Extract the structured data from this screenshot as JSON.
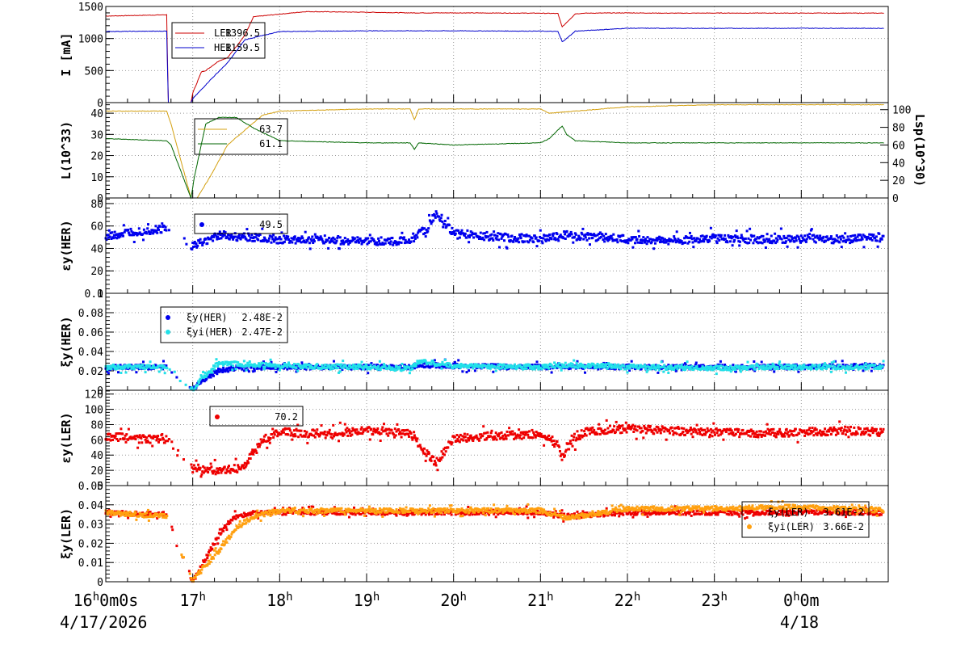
{
  "time_axis": {
    "start_label": "16h0m0s",
    "start_date": "4/17/2026",
    "ticks": [
      {
        "t": 0,
        "main": "16",
        "sup": "h",
        "extra": "0m0s"
      },
      {
        "t": 1,
        "main": "17",
        "sup": "h"
      },
      {
        "t": 2,
        "main": "18",
        "sup": "h"
      },
      {
        "t": 3,
        "main": "19",
        "sup": "h"
      },
      {
        "t": 4,
        "main": "20",
        "sup": "h"
      },
      {
        "t": 5,
        "main": "21",
        "sup": "h"
      },
      {
        "t": 6,
        "main": "22",
        "sup": "h"
      },
      {
        "t": 7,
        "main": "23",
        "sup": "h"
      },
      {
        "t": 8,
        "main": "0",
        "sup": "h",
        "extra": "0m"
      }
    ],
    "end_date": "4/18",
    "range_hours": [
      0,
      9.0
    ]
  },
  "chart_data": [
    {
      "type": "line",
      "id": "beam-current",
      "ylabel": "I [mA]",
      "ylim": [
        0,
        1500
      ],
      "yticks": [
        0,
        500,
        1000,
        1500
      ],
      "grid": true,
      "legend_position": "top-left",
      "series": [
        {
          "name": "LER",
          "value_label": "1396.5",
          "color": "#cc0000",
          "x": [
            0,
            0.7,
            0.72,
            0.98,
            1.0,
            1.1,
            1.15,
            1.3,
            1.4,
            1.6,
            1.7,
            2.0,
            2.3,
            3.0,
            3.5,
            4.0,
            5.0,
            5.2,
            5.25,
            5.3,
            5.4,
            5.5,
            6.0,
            6.5,
            7.0,
            8.0,
            8.95
          ],
          "y": [
            1350,
            1370,
            0,
            0,
            150,
            480,
            500,
            650,
            700,
            1050,
            1340,
            1380,
            1420,
            1410,
            1400,
            1400,
            1395,
            1390,
            1180,
            1250,
            1385,
            1395,
            1400,
            1395,
            1397,
            1396,
            1396
          ]
        },
        {
          "name": "HER",
          "value_label": "1159.5",
          "color": "#0000cc",
          "x": [
            0,
            0.7,
            0.72,
            0.98,
            1.0,
            1.2,
            1.4,
            1.6,
            2.0,
            3.0,
            4.0,
            5.0,
            5.2,
            5.25,
            5.3,
            5.4,
            5.6,
            6.0,
            7.0,
            8.0,
            8.95
          ],
          "y": [
            1110,
            1115,
            0,
            0,
            60,
            350,
            620,
            980,
            1110,
            1120,
            1120,
            1115,
            1110,
            950,
            1000,
            1115,
            1130,
            1160,
            1158,
            1160,
            1159
          ]
        }
      ]
    },
    {
      "type": "line",
      "id": "luminosity",
      "ylabel": "L(10^33)",
      "ylabel_right": "Lsp(10^30)",
      "ylim": [
        0,
        45
      ],
      "yticks": [
        0,
        10,
        20,
        30,
        40
      ],
      "ylim_right": [
        0,
        108
      ],
      "yticks_right": [
        0,
        20,
        40,
        60,
        80,
        100
      ],
      "grid": true,
      "legend_position": "top-left",
      "series": [
        {
          "name": "",
          "value_label": "63.7",
          "color": "#d4a010",
          "axis": "left",
          "x": [
            0,
            0.7,
            0.75,
            0.98,
            1.05,
            1.2,
            1.4,
            1.6,
            1.8,
            2.0,
            3.0,
            3.5,
            3.55,
            3.6,
            4.0,
            5.0,
            5.1,
            6.0,
            7.0,
            8.0,
            8.95
          ],
          "y": [
            41,
            41,
            35,
            0,
            0,
            10,
            25,
            32,
            39,
            41,
            42,
            42,
            37,
            42,
            42,
            42,
            40,
            43,
            44,
            44,
            44
          ]
        },
        {
          "name": "",
          "value_label": "61.1",
          "color": "#006600",
          "axis": "left",
          "x": [
            0,
            0.7,
            0.75,
            0.98,
            1.02,
            1.15,
            1.3,
            1.5,
            1.7,
            2.0,
            3.0,
            3.5,
            3.55,
            3.6,
            4.0,
            5.0,
            5.1,
            5.25,
            5.3,
            5.4,
            6.0,
            7.0,
            8.0,
            8.95
          ],
          "y": [
            28,
            27,
            25,
            0,
            10,
            35,
            38,
            38,
            33,
            27,
            26,
            26,
            23,
            26,
            25,
            26,
            28,
            34,
            30,
            27,
            26,
            26,
            26,
            26
          ]
        }
      ]
    },
    {
      "type": "scatter",
      "id": "emittance-her",
      "ylabel": "εy(HER)",
      "ylim": [
        0,
        85
      ],
      "yticks": [
        0,
        20,
        40,
        60,
        80
      ],
      "grid": true,
      "legend_position": "top-left",
      "series": [
        {
          "name": "",
          "value_label": "49.5",
          "color": "#0000ee",
          "x": [
            0,
            0.3,
            0.6,
            0.7,
            1.0,
            1.1,
            1.3,
            1.6,
            2.0,
            2.5,
            3.0,
            3.5,
            3.7,
            3.8,
            4.0,
            4.5,
            5.0,
            5.3,
            6.0,
            6.5,
            7.0,
            7.5,
            8.0,
            8.5,
            8.95
          ],
          "y": [
            50,
            55,
            57,
            58,
            42,
            45,
            52,
            50,
            48,
            48,
            46,
            47,
            58,
            72,
            54,
            50,
            48,
            52,
            48,
            47,
            49,
            48,
            49,
            48,
            50
          ]
        }
      ]
    },
    {
      "type": "scatter",
      "id": "tune-shift-her",
      "ylabel": "ξy(HER)",
      "ylim": [
        0,
        0.1
      ],
      "yticks": [
        0,
        0.02,
        0.04,
        0.06,
        0.08,
        0.1
      ],
      "grid": true,
      "legend_position": "top-left",
      "series": [
        {
          "name": "ξy(HER)",
          "value_label": "2.48E-2",
          "color": "#0000ee",
          "x": [
            0,
            0.7,
            1.0,
            1.1,
            1.2,
            1.3,
            1.5,
            2.0,
            3.0,
            3.5,
            3.6,
            4.0,
            5.0,
            5.3,
            6.0,
            7.0,
            8.0,
            8.95
          ],
          "y": [
            0.024,
            0.024,
            0,
            0.01,
            0.015,
            0.02,
            0.023,
            0.024,
            0.024,
            0.024,
            0.026,
            0.025,
            0.024,
            0.024,
            0.024,
            0.024,
            0.024,
            0.025
          ]
        },
        {
          "name": "ξyi(HER)",
          "value_label": "2.47E-2",
          "color": "#22e0e8",
          "x": [
            0,
            0.7,
            1.0,
            1.1,
            1.2,
            1.3,
            1.5,
            2.0,
            3.0,
            3.5,
            3.6,
            4.0,
            5.0,
            5.3,
            6.0,
            7.0,
            8.0,
            8.95
          ],
          "y": [
            0.024,
            0.024,
            0,
            0.012,
            0.02,
            0.028,
            0.027,
            0.025,
            0.024,
            0.022,
            0.03,
            0.025,
            0.024,
            0.026,
            0.024,
            0.023,
            0.024,
            0.024
          ]
        }
      ]
    },
    {
      "type": "scatter",
      "id": "emittance-ler",
      "ylabel": "εy(LER)",
      "ylim": [
        0,
        125
      ],
      "yticks": [
        0,
        20,
        40,
        60,
        80,
        100,
        120
      ],
      "grid": true,
      "legend_position": "top-left",
      "series": [
        {
          "name": "",
          "value_label": "70.2",
          "color": "#ee0000",
          "x": [
            0,
            0.3,
            0.6,
            0.7,
            1.0,
            1.1,
            1.3,
            1.5,
            1.6,
            1.7,
            1.8,
            2.0,
            2.5,
            3.0,
            3.5,
            3.6,
            3.7,
            3.8,
            4.0,
            4.5,
            5.0,
            5.2,
            5.25,
            5.3,
            5.5,
            6.0,
            6.5,
            7.0,
            7.5,
            8.0,
            8.5,
            8.95
          ],
          "y": [
            65,
            62,
            60,
            60,
            22,
            20,
            20,
            22,
            28,
            45,
            60,
            70,
            68,
            72,
            68,
            55,
            40,
            30,
            62,
            65,
            68,
            55,
            35,
            50,
            70,
            75,
            72,
            70,
            68,
            70,
            72,
            70
          ]
        }
      ]
    },
    {
      "type": "scatter",
      "id": "tune-shift-ler",
      "ylabel": "ξy(LER)",
      "ylim": [
        0,
        0.05
      ],
      "yticks": [
        0,
        0.01,
        0.02,
        0.03,
        0.04,
        0.05
      ],
      "ytick_labels": [
        "0",
        "0.01",
        "0.02",
        "0.03",
        "0.04",
        "0.05"
      ],
      "grid": true,
      "legend_position": "top-right",
      "series": [
        {
          "name": "ξy(LER)",
          "value_label": "3.61E-2",
          "color": "#ee0000",
          "x": [
            0,
            0.7,
            1.0,
            1.1,
            1.2,
            1.3,
            1.4,
            1.5,
            1.7,
            2.0,
            3.0,
            4.0,
            5.0,
            5.3,
            6.0,
            7.0,
            8.0,
            8.95
          ],
          "y": [
            0.036,
            0.035,
            0,
            0.008,
            0.016,
            0.024,
            0.03,
            0.034,
            0.036,
            0.036,
            0.036,
            0.036,
            0.036,
            0.034,
            0.036,
            0.036,
            0.036,
            0.036
          ]
        },
        {
          "name": "ξyi(LER)",
          "value_label": "3.66E-2",
          "color": "#ffa010",
          "x": [
            0,
            0.7,
            1.0,
            1.1,
            1.2,
            1.3,
            1.4,
            1.5,
            1.7,
            2.0,
            3.0,
            4.0,
            5.0,
            5.3,
            6.0,
            7.0,
            8.0,
            8.95
          ],
          "y": [
            0.036,
            0.034,
            0,
            0.006,
            0.011,
            0.016,
            0.022,
            0.028,
            0.034,
            0.037,
            0.037,
            0.037,
            0.037,
            0.033,
            0.038,
            0.038,
            0.039,
            0.037
          ]
        }
      ]
    }
  ]
}
